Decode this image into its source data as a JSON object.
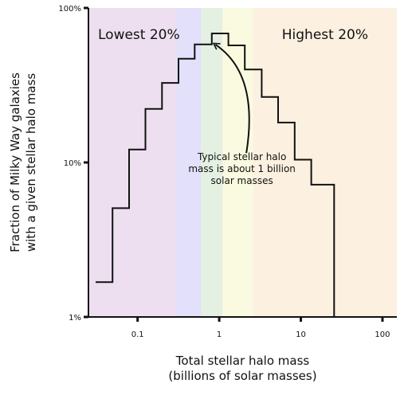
{
  "chart_data": {
    "type": "step",
    "title": "",
    "xlabel": [
      "Total stellar halo mass",
      "(billions of solar masses)"
    ],
    "ylabel": [
      "Fraction of Milky Way galaxies",
      "with a given stellar halo mass"
    ],
    "x_scale": "log",
    "y_scale": "log",
    "xlim": [
      0.025,
      150
    ],
    "ylim": [
      0.01,
      1
    ],
    "x_ticks": [
      {
        "value": 0.1,
        "label": "0.1"
      },
      {
        "value": 1,
        "label": "1"
      },
      {
        "value": 10,
        "label": "10"
      },
      {
        "value": 100,
        "label": "100"
      }
    ],
    "y_ticks": [
      {
        "value": 0.01,
        "label": "1%"
      },
      {
        "value": 0.1,
        "label": "10%"
      },
      {
        "value": 1,
        "label": "100%"
      }
    ],
    "series": [
      {
        "bins": [
          {
            "x0": 0.0306,
            "x1": 0.0493,
            "y": 0.0168
          },
          {
            "x0": 0.0493,
            "x1": 0.0787,
            "y": 0.0506
          },
          {
            "x0": 0.0787,
            "x1": 0.1246,
            "y": 0.1214
          },
          {
            "x0": 0.1246,
            "x1": 0.1991,
            "y": 0.2223
          },
          {
            "x0": 0.1991,
            "x1": 0.3169,
            "y": 0.3273
          },
          {
            "x0": 0.3169,
            "x1": 0.5009,
            "y": 0.4693
          },
          {
            "x0": 0.5009,
            "x1": 0.8121,
            "y": 0.5814
          },
          {
            "x0": 0.8121,
            "x1": 1.2952,
            "y": 0.6839
          },
          {
            "x0": 1.2952,
            "x1": 2.0595,
            "y": 0.5724
          },
          {
            "x0": 2.0595,
            "x1": 3.3115,
            "y": 0.3999
          },
          {
            "x0": 3.3115,
            "x1": 5.2692,
            "y": 0.2652
          },
          {
            "x0": 5.2692,
            "x1": 8.4073,
            "y": 0.1813
          },
          {
            "x0": 8.4073,
            "x1": 13.4087,
            "y": 0.1043
          },
          {
            "x0": 13.4087,
            "x1": 21.2,
            "y": 0.0718
          },
          {
            "x0": 21.2,
            "x1": 25.6,
            "y": 0.0718
          }
        ]
      }
    ],
    "bands": [
      {
        "x0": 0.025,
        "x1": 0.3,
        "color": "#eddff0",
        "label": "Lowest 20%"
      },
      {
        "x0": 0.3,
        "x1": 0.6,
        "color": "#e2e0fa",
        "label": ""
      },
      {
        "x0": 0.6,
        "x1": 1.1,
        "color": "#e4f0e2",
        "label": ""
      },
      {
        "x0": 1.1,
        "x1": 2.6,
        "color": "#fafae0",
        "label": ""
      },
      {
        "x0": 2.6,
        "x1": 150,
        "color": "#fcf0e0",
        "label": "Highest 20%"
      }
    ],
    "annotation": {
      "lines": [
        "Typical stellar halo",
        "mass is about 1 billion",
        "solar masses"
      ],
      "points_to": {
        "x": 0.9,
        "y": 0.6
      }
    },
    "grid": false,
    "legend": "none"
  }
}
